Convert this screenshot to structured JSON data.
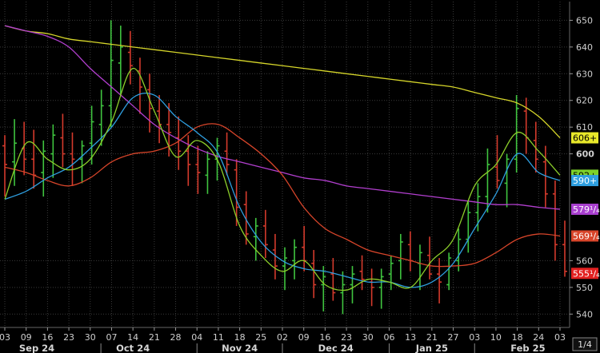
{
  "chart_data": {
    "type": "ohlc",
    "y_ticks": [
      540,
      550,
      560,
      600,
      610,
      620,
      630,
      640,
      650
    ],
    "y_range": [
      535,
      657
    ],
    "bold_tick": "600",
    "page_label": "1/4",
    "x_day_labels": [
      "03",
      "09",
      "16",
      "23",
      "30",
      "07",
      "14",
      "21",
      "28",
      "04",
      "11",
      "18",
      "25",
      "02",
      "09",
      "16",
      "23",
      "30",
      "06",
      "13",
      "21",
      "27",
      "03",
      "10",
      "18",
      "24",
      "03"
    ],
    "months": [
      {
        "label": "Sep 24",
        "at_index": 1.5
      },
      {
        "label": "Oct 24",
        "at_index": 6
      },
      {
        "label": "Nov 24",
        "at_index": 11
      },
      {
        "label": "Dec 24",
        "at_index": 15.5
      },
      {
        "label": "Jan 25",
        "at_index": 20
      },
      {
        "label": "Feb 25",
        "at_index": 24.5
      }
    ],
    "colors": {
      "background": "#000000",
      "grid": "#3a3a3a",
      "up_bar": "#3fc43f",
      "down_bar": "#d43a2c",
      "ma_yellow": "#d6d62a",
      "ma_purple": "#b23fcf",
      "ma_red": "#d8452a",
      "ma_blue": "#2f9fe0",
      "ma_green": "#8ccf2a"
    },
    "price_tags": [
      {
        "text": "606+",
        "value": 606,
        "bg": "#e8e82a",
        "fg": "#000000"
      },
      {
        "text": "592+",
        "value": 592,
        "bg": "#7ed12a",
        "fg": "#000000"
      },
      {
        "text": "590+",
        "value": 590,
        "bg": "#2f9fe0",
        "fg": "#ffffff"
      },
      {
        "text": "579¹/₄+",
        "value": 579.25,
        "bg": "#a93fcf",
        "fg": "#ffffff"
      },
      {
        "text": "569¹/₄+",
        "value": 569.25,
        "bg": "#d8452a",
        "fg": "#ffffff"
      },
      {
        "text": "555¹/₄",
        "value": 555.25,
        "bg": "#e22020",
        "fg": "#ffffff"
      }
    ],
    "series": [
      {
        "name": "ma_yellow",
        "values": [
          648,
          646,
          645,
          643,
          642,
          641,
          640,
          639,
          638,
          637,
          636,
          635,
          634,
          633,
          632,
          631,
          630,
          629,
          628,
          627,
          626,
          625,
          623,
          621,
          619,
          614,
          606
        ]
      },
      {
        "name": "ma_purple",
        "values": [
          648,
          646,
          644,
          640,
          632,
          625,
          618,
          611,
          606,
          602,
          599,
          597,
          595,
          593,
          591,
          590,
          588,
          587,
          586,
          585,
          584,
          583,
          582,
          581,
          581,
          580,
          579.25
        ]
      },
      {
        "name": "ma_red",
        "values": [
          595,
          593,
          590,
          588,
          591,
          597,
          600,
          601,
          604,
          610,
          611,
          606,
          600,
          592,
          580,
          572,
          568,
          564,
          562,
          560,
          558,
          558,
          559,
          563,
          568,
          570,
          569.25
        ]
      },
      {
        "name": "ma_blue",
        "values": [
          583,
          586,
          591,
          595,
          602,
          610,
          621,
          622,
          614,
          608,
          600,
          580,
          567,
          560,
          557,
          556,
          554,
          552,
          552,
          550,
          552,
          559,
          572,
          585,
          600,
          593,
          590
        ]
      },
      {
        "name": "ma_green",
        "values": [
          583,
          604,
          598,
          594,
          598,
          612,
          632,
          616,
          599,
          605,
          597,
          573,
          562,
          556,
          560,
          551,
          549,
          553,
          552,
          550,
          560,
          568,
          588,
          596,
          608,
          601,
          592
        ]
      }
    ],
    "ohlc": [
      [
        603,
        607,
        584,
        596
      ],
      [
        597,
        613,
        588,
        604
      ],
      [
        602,
        612,
        592,
        598
      ],
      [
        598,
        609,
        587,
        592
      ],
      [
        593,
        605,
        584,
        601
      ],
      [
        600,
        611,
        591,
        607
      ],
      [
        606,
        615,
        595,
        600
      ],
      [
        600,
        608,
        588,
        598
      ],
      [
        598,
        605,
        589,
        603
      ],
      [
        604,
        618,
        596,
        612
      ],
      [
        611,
        624,
        603,
        618
      ],
      [
        618,
        650,
        610,
        635
      ],
      [
        634,
        648,
        622,
        640
      ],
      [
        638,
        646,
        626,
        633
      ],
      [
        631,
        636,
        615,
        625
      ],
      [
        624,
        630,
        608,
        617
      ],
      [
        616,
        622,
        604,
        611
      ],
      [
        611,
        619,
        599,
        608
      ],
      [
        606,
        614,
        594,
        601
      ],
      [
        601,
        607,
        588,
        596
      ],
      [
        596,
        603,
        585,
        593
      ],
      [
        592,
        601,
        585,
        598
      ],
      [
        598,
        606,
        590,
        603
      ],
      [
        601,
        608,
        592,
        596
      ],
      [
        594,
        598,
        573,
        580
      ],
      [
        581,
        586,
        566,
        570
      ],
      [
        569,
        576,
        560,
        573
      ],
      [
        573,
        579,
        561,
        566
      ],
      [
        564,
        570,
        553,
        558
      ],
      [
        558,
        565,
        549,
        561
      ],
      [
        560,
        568,
        553,
        565
      ],
      [
        565,
        573,
        556,
        560
      ],
      [
        559,
        564,
        546,
        551
      ],
      [
        551,
        558,
        541,
        554
      ],
      [
        555,
        561,
        545,
        548
      ],
      [
        548,
        556,
        540,
        551
      ],
      [
        551,
        558,
        544,
        555
      ],
      [
        556,
        562,
        549,
        553
      ],
      [
        552,
        557,
        543,
        550
      ],
      [
        550,
        557,
        542,
        554
      ],
      [
        555,
        562,
        549,
        559
      ],
      [
        560,
        570,
        553,
        567
      ],
      [
        566,
        571,
        556,
        560
      ],
      [
        559,
        566,
        549,
        563
      ],
      [
        562,
        569,
        553,
        555
      ],
      [
        555,
        561,
        544,
        552
      ],
      [
        551,
        563,
        549,
        561
      ],
      [
        560,
        572,
        556,
        568
      ],
      [
        568,
        582,
        563,
        578
      ],
      [
        578,
        589,
        571,
        584
      ],
      [
        584,
        602,
        578,
        596
      ],
      [
        595,
        607,
        587,
        590
      ],
      [
        589,
        600,
        580,
        598
      ],
      [
        598,
        622,
        593,
        617
      ],
      [
        616,
        621,
        600,
        606
      ],
      [
        605,
        612,
        593,
        598
      ],
      [
        597,
        603,
        580,
        585
      ],
      [
        585,
        590,
        560,
        566
      ],
      [
        566,
        575,
        554,
        556
      ]
    ]
  }
}
